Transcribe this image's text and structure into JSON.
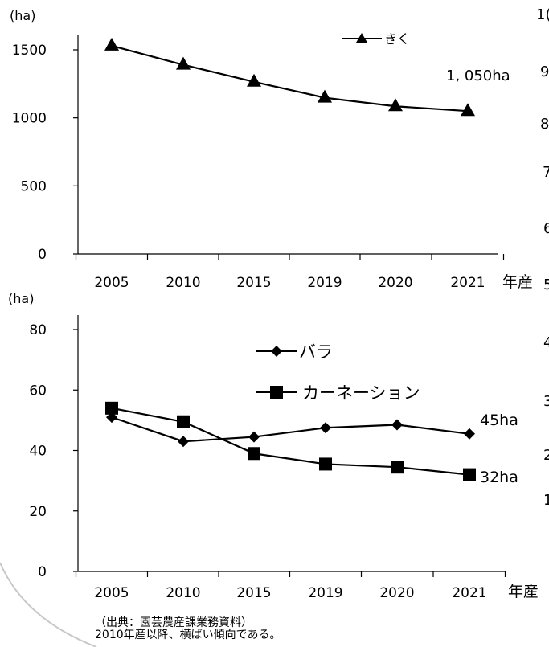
{
  "chart_data": [
    {
      "type": "line",
      "unit": "(ha)",
      "x_unit": "年産",
      "categories": [
        "2005",
        "2010",
        "2015",
        "2019",
        "2020",
        "2021"
      ],
      "ylim": [
        0,
        1500
      ],
      "yticks": [
        "0",
        "500",
        "1000",
        "1500"
      ],
      "series": [
        {
          "name": "きく",
          "marker": "triangle",
          "color": "#000000",
          "values": [
            1530,
            1390,
            1265,
            1148,
            1085,
            1050
          ]
        }
      ],
      "annotation": "1, 050ha",
      "legend": "top-right",
      "grid": false
    },
    {
      "type": "line",
      "unit": "(ha)",
      "x_unit": "年産",
      "categories": [
        "2005",
        "2010",
        "2015",
        "2019",
        "2020",
        "2021"
      ],
      "ylim": [
        0,
        80
      ],
      "yticks": [
        "0",
        "20",
        "40",
        "60",
        "80"
      ],
      "series": [
        {
          "name": "バラ",
          "marker": "diamond",
          "color": "#000000",
          "values": [
            51,
            43,
            44.5,
            47.5,
            48.5,
            45.5
          ]
        },
        {
          "name": "カーネーション",
          "marker": "square",
          "color": "#000000",
          "values": [
            54,
            49.5,
            39,
            35.5,
            34.5,
            32
          ]
        }
      ],
      "annotations": [
        "45ha",
        "32ha"
      ],
      "legend": "top-center",
      "grid": false
    }
  ],
  "source_note": "（出典：園芸農産課業務資料）",
  "caption": "2010年産以降、横ばい傾向である。",
  "cutoff_glyphs": [
    "1(",
    "9",
    "8",
    "7",
    "6",
    "5",
    "4",
    "3",
    "2",
    "1"
  ]
}
